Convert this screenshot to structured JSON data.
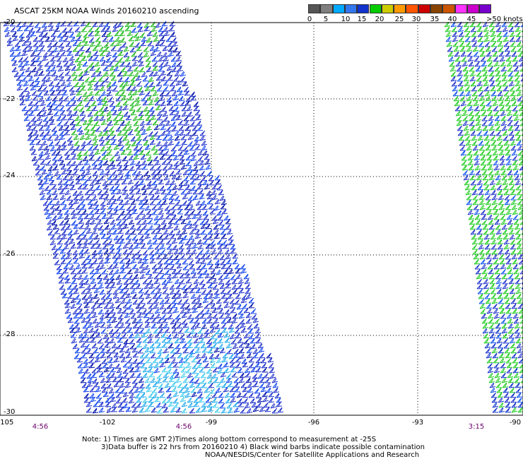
{
  "title": "ASCAT 25KM NOAA Winds 20160210 ascending",
  "scale": {
    "colors": [
      "#555555",
      "#7f7f7f",
      "#00aaff",
      "#3377ee",
      "#1133cc",
      "#00cc00",
      "#cccc00",
      "#ff9900",
      "#ff5500",
      "#cc0000",
      "#884400",
      "#cc5500",
      "#ff33ff",
      "#cc00cc",
      "#7700cc"
    ],
    "labels": [
      "0",
      "5",
      "10",
      "15",
      "20",
      "25",
      "30",
      "35",
      "40",
      "45"
    ],
    "unit": ">50 knots"
  },
  "lat_ticks": [
    "-20",
    "-22",
    "-24",
    "-26",
    "-28",
    "-30"
  ],
  "lon_ticks": [
    "-105",
    "-102",
    "-99",
    "-96",
    "-93",
    "-90"
  ],
  "times": [
    "4:56",
    "4:56",
    "3:15"
  ],
  "notes": [
    "Note: 1) Times are GMT 2)Times along bottom correspond to measurement at -25S",
    "3)Data buffer is 22 hrs from 20160210 4) Black wind barbs indicate possible contamination",
    "NOAA/NESDIS/Center for Satellite Applications and Research"
  ]
}
